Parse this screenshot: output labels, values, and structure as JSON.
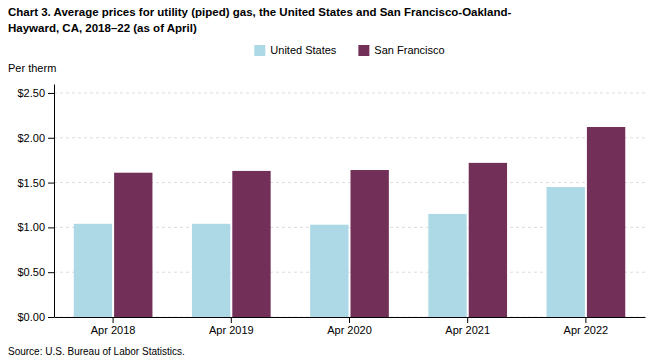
{
  "chart_data": {
    "type": "bar",
    "title": [
      "Chart 3. Average prices for utility (piped) gas, the United States and San Francisco-Oakland-",
      "Hayward, CA, 2018–22 (as of April)"
    ],
    "y_label": "Per therm",
    "source": "Source: U.S. Bureau of Labor Statistics.",
    "categories": [
      "Apr 2018",
      "Apr 2019",
      "Apr 2020",
      "Apr 2021",
      "Apr 2022"
    ],
    "series": [
      {
        "name": "United States",
        "color": "#add8e6",
        "values": [
          1.04,
          1.04,
          1.03,
          1.15,
          1.45
        ]
      },
      {
        "name": "San Francisco",
        "color": "#722F57",
        "values": [
          1.61,
          1.63,
          1.64,
          1.72,
          2.12
        ]
      }
    ],
    "ylim": [
      0.0,
      2.6
    ],
    "yticks": [
      {
        "value": 0.0,
        "label": "$0.00"
      },
      {
        "value": 0.5,
        "label": "$0.50"
      },
      {
        "value": 1.0,
        "label": "$1.00"
      },
      {
        "value": 1.5,
        "label": "$1.50"
      },
      {
        "value": 2.0,
        "label": "$2.00"
      },
      {
        "value": 2.5,
        "label": "$2.50"
      }
    ],
    "grid": true,
    "legend": "top"
  }
}
